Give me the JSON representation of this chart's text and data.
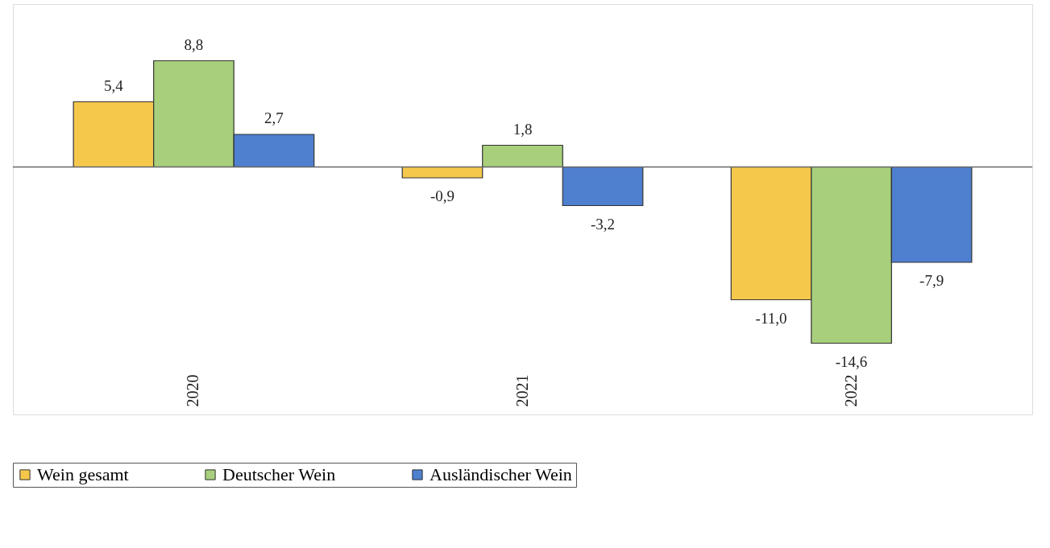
{
  "chart_data": {
    "type": "bar",
    "categories": [
      "2020",
      "2021",
      "2022"
    ],
    "series": [
      {
        "name": "Wein gesamt",
        "color": "#f5c84c",
        "values": [
          5.4,
          -0.9,
          -11.0
        ],
        "value_labels": [
          "5,4",
          "-0,9",
          "-11,0"
        ]
      },
      {
        "name": "Deutscher Wein",
        "color": "#a8cf7c",
        "values": [
          8.8,
          1.8,
          -14.6
        ],
        "value_labels": [
          "8,8",
          "1,8",
          "-14,6"
        ]
      },
      {
        "name": "Ausländischer Wein",
        "color": "#4f7fcf",
        "values": [
          2.7,
          -3.2,
          -7.9
        ],
        "value_labels": [
          "2,7",
          "-3,2",
          "-7,9"
        ]
      }
    ],
    "ylim": [
      -20.5,
      13.5
    ],
    "tick_labels": "x",
    "legend": "bottom"
  }
}
